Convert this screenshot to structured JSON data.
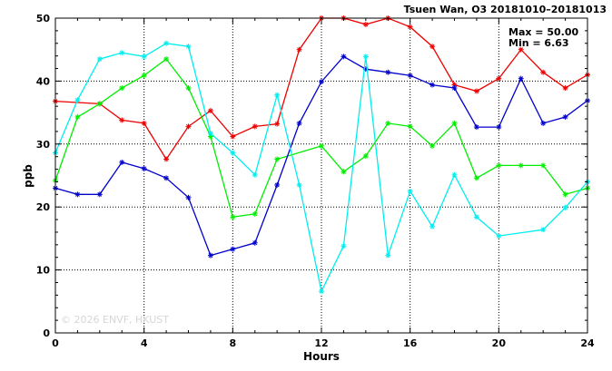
{
  "chart_data": {
    "type": "line",
    "title": "Tsuen Wan, O3 20181010–20181013",
    "xlabel": "Hours",
    "ylabel": "ppb",
    "xlim": [
      0,
      24
    ],
    "ylim": [
      0,
      50
    ],
    "xticks": [
      0,
      4,
      8,
      12,
      16,
      20,
      24
    ],
    "yticks": [
      0,
      10,
      20,
      30,
      40,
      50
    ],
    "grid": true,
    "stats": {
      "max": "Max = 50.00",
      "min": "Min =  6.63"
    },
    "watermark": "© 2026  ENVF, HKUST",
    "x": [
      0,
      1,
      2,
      3,
      4,
      5,
      6,
      7,
      8,
      9,
      10,
      11,
      12,
      13,
      14,
      15,
      16,
      17,
      18,
      19,
      20,
      21,
      22,
      23,
      24
    ],
    "series": [
      {
        "color": "#ee0000",
        "values": [
          36.8,
          null,
          36.4,
          33.8,
          33.3,
          27.6,
          32.8,
          35.3,
          31.2,
          32.8,
          33.2,
          45.0,
          50.0,
          50.0,
          49.0,
          50.0,
          48.6,
          45.5,
          39.4,
          38.4,
          40.4,
          45.0,
          41.4,
          38.9,
          41.0
        ]
      },
      {
        "color": "#00ee00",
        "values": [
          24.2,
          34.3,
          36.4,
          38.9,
          40.9,
          43.5,
          38.9,
          31.2,
          18.4,
          18.9,
          27.6,
          null,
          29.7,
          25.6,
          28.1,
          33.3,
          32.8,
          29.7,
          33.3,
          24.6,
          26.6,
          26.6,
          26.6,
          22.0,
          23.0
        ]
      },
      {
        "color": "#0000cc",
        "values": [
          23.0,
          22.0,
          22.0,
          27.1,
          26.1,
          24.6,
          21.5,
          12.3,
          13.3,
          14.3,
          23.5,
          33.3,
          39.9,
          43.9,
          41.9,
          41.4,
          40.9,
          39.4,
          38.9,
          32.7,
          32.7,
          40.4,
          33.3,
          34.3,
          36.9
        ]
      },
      {
        "color": "#00eeee",
        "values": [
          28.6,
          37.0,
          43.5,
          44.5,
          43.9,
          46.0,
          45.5,
          31.7,
          28.6,
          25.1,
          37.8,
          23.5,
          6.6,
          13.8,
          43.9,
          12.3,
          22.5,
          16.9,
          25.1,
          18.4,
          15.4,
          null,
          16.4,
          19.9,
          24.0
        ]
      }
    ]
  }
}
